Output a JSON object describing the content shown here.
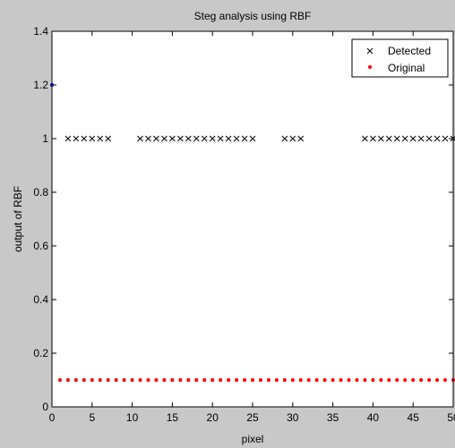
{
  "chart_data": {
    "type": "scatter",
    "title": "Steg analysis using RBF",
    "xlabel": "pixel",
    "ylabel": "output of RBF",
    "xlim": [
      0,
      50
    ],
    "ylim": [
      0,
      1.4
    ],
    "xticks": [
      0,
      5,
      10,
      15,
      20,
      25,
      30,
      35,
      40,
      45,
      50
    ],
    "yticks": [
      0,
      0.2,
      0.4,
      0.6,
      0.8,
      1,
      1.2,
      1.4
    ],
    "xtick_labels": [
      "0",
      "5",
      "10",
      "15",
      "20",
      "25",
      "30",
      "35",
      "40",
      "45",
      "50"
    ],
    "ytick_labels": [
      "0",
      "0.2",
      "0.4",
      "0.6",
      "0.8",
      "1",
      "1.2",
      "1.4"
    ],
    "grid": false,
    "legend_position": "top-right",
    "series": [
      {
        "name": "Detected",
        "marker": "x",
        "color": "#000000",
        "x": [
          2,
          3,
          4,
          5,
          6,
          7,
          11,
          12,
          13,
          14,
          15,
          16,
          17,
          18,
          19,
          20,
          21,
          22,
          23,
          24,
          25,
          29,
          30,
          31,
          39,
          40,
          41,
          42,
          43,
          44,
          45,
          46,
          47,
          48,
          49,
          50
        ],
        "y": [
          1,
          1,
          1,
          1,
          1,
          1,
          1,
          1,
          1,
          1,
          1,
          1,
          1,
          1,
          1,
          1,
          1,
          1,
          1,
          1,
          1,
          1,
          1,
          1,
          1,
          1,
          1,
          1,
          1,
          1,
          1,
          1,
          1,
          1,
          1,
          1
        ]
      },
      {
        "name": "Original",
        "marker": "dot",
        "color": "#ff0000",
        "x": [
          1,
          2,
          3,
          4,
          5,
          6,
          7,
          8,
          9,
          10,
          11,
          12,
          13,
          14,
          15,
          16,
          17,
          18,
          19,
          20,
          21,
          22,
          23,
          24,
          25,
          26,
          27,
          28,
          29,
          30,
          31,
          32,
          33,
          34,
          35,
          36,
          37,
          38,
          39,
          40,
          41,
          42,
          43,
          44,
          45,
          46,
          47,
          48,
          49,
          50
        ],
        "y": [
          0.1,
          0.1,
          0.1,
          0.1,
          0.1,
          0.1,
          0.1,
          0.1,
          0.1,
          0.1,
          0.1,
          0.1,
          0.1,
          0.1,
          0.1,
          0.1,
          0.1,
          0.1,
          0.1,
          0.1,
          0.1,
          0.1,
          0.1,
          0.1,
          0.1,
          0.1,
          0.1,
          0.1,
          0.1,
          0.1,
          0.1,
          0.1,
          0.1,
          0.1,
          0.1,
          0.1,
          0.1,
          0.1,
          0.1,
          0.1,
          0.1,
          0.1,
          0.1,
          0.1,
          0.1,
          0.1,
          0.1,
          0.1,
          0.1,
          0.1
        ]
      },
      {
        "marker": "dot",
        "color": "#0000ff",
        "x": [
          0
        ],
        "y": [
          1.2
        ]
      }
    ]
  }
}
